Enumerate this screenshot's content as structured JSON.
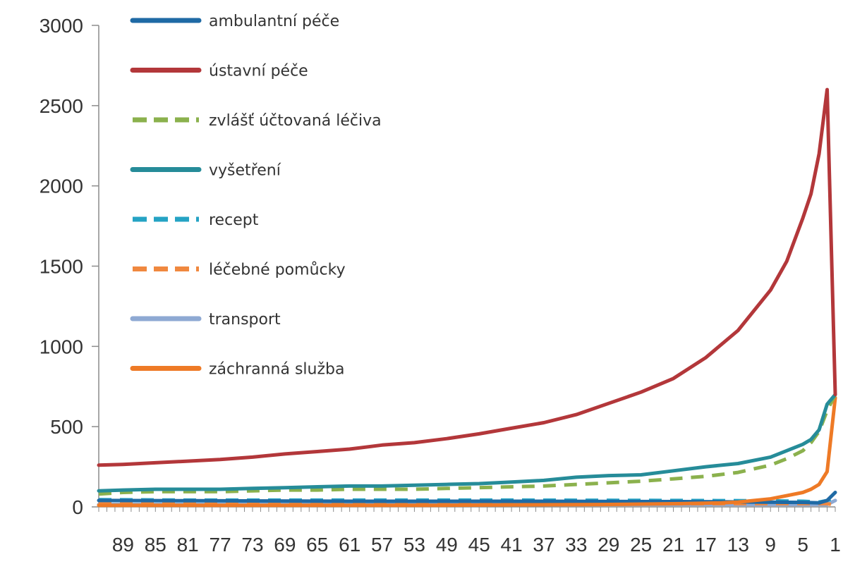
{
  "chart_data": {
    "type": "line",
    "title": "",
    "xlabel": "",
    "ylabel": "",
    "x_range": [
      92,
      1
    ],
    "ylim": [
      0,
      3000
    ],
    "y_ticks": [
      0,
      500,
      1000,
      1500,
      2000,
      2500,
      3000
    ],
    "x_ticks": [
      89,
      85,
      81,
      77,
      73,
      69,
      65,
      61,
      57,
      53,
      49,
      45,
      41,
      37,
      33,
      29,
      25,
      21,
      17,
      13,
      9,
      5,
      1
    ],
    "grid": false,
    "legend_placement": "top-left",
    "series": [
      {
        "name": "ambulantní péče",
        "color": "#1f6aa5",
        "dash": "solid",
        "points": [
          [
            92,
            40
          ],
          [
            80,
            38
          ],
          [
            60,
            35
          ],
          [
            40,
            35
          ],
          [
            20,
            33
          ],
          [
            10,
            30
          ],
          [
            5,
            28
          ],
          [
            3,
            25
          ],
          [
            2,
            40
          ],
          [
            1,
            90
          ]
        ]
      },
      {
        "name": "ústavní péče",
        "color": "#b3373a",
        "dash": "solid",
        "points": [
          [
            92,
            260
          ],
          [
            89,
            265
          ],
          [
            85,
            275
          ],
          [
            81,
            285
          ],
          [
            77,
            295
          ],
          [
            73,
            310
          ],
          [
            69,
            330
          ],
          [
            65,
            345
          ],
          [
            61,
            360
          ],
          [
            57,
            385
          ],
          [
            53,
            400
          ],
          [
            49,
            425
          ],
          [
            45,
            455
          ],
          [
            41,
            490
          ],
          [
            37,
            525
          ],
          [
            33,
            575
          ],
          [
            29,
            645
          ],
          [
            25,
            715
          ],
          [
            21,
            800
          ],
          [
            17,
            930
          ],
          [
            13,
            1100
          ],
          [
            9,
            1350
          ],
          [
            7,
            1530
          ],
          [
            5,
            1800
          ],
          [
            4,
            1950
          ],
          [
            3,
            2200
          ],
          [
            2,
            2600
          ],
          [
            1,
            700
          ]
        ]
      },
      {
        "name": "zvlášť účtovaná léčiva",
        "color": "#8bb14d",
        "dash": "dashed",
        "points": [
          [
            92,
            80
          ],
          [
            89,
            90
          ],
          [
            85,
            95
          ],
          [
            81,
            95
          ],
          [
            77,
            95
          ],
          [
            73,
            100
          ],
          [
            69,
            105
          ],
          [
            65,
            105
          ],
          [
            61,
            110
          ],
          [
            57,
            110
          ],
          [
            53,
            110
          ],
          [
            49,
            115
          ],
          [
            45,
            120
          ],
          [
            41,
            125
          ],
          [
            37,
            130
          ],
          [
            33,
            140
          ],
          [
            29,
            150
          ],
          [
            25,
            160
          ],
          [
            21,
            175
          ],
          [
            17,
            190
          ],
          [
            13,
            215
          ],
          [
            9,
            260
          ],
          [
            7,
            300
          ],
          [
            5,
            350
          ],
          [
            4,
            400
          ],
          [
            3,
            470
          ],
          [
            2,
            600
          ],
          [
            1,
            700
          ]
        ]
      },
      {
        "name": "vyšetření",
        "color": "#268c99",
        "dash": "solid",
        "points": [
          [
            92,
            100
          ],
          [
            89,
            105
          ],
          [
            85,
            110
          ],
          [
            81,
            110
          ],
          [
            77,
            110
          ],
          [
            73,
            115
          ],
          [
            69,
            120
          ],
          [
            65,
            125
          ],
          [
            61,
            130
          ],
          [
            57,
            130
          ],
          [
            53,
            135
          ],
          [
            49,
            140
          ],
          [
            45,
            145
          ],
          [
            41,
            155
          ],
          [
            37,
            165
          ],
          [
            33,
            185
          ],
          [
            29,
            195
          ],
          [
            25,
            200
          ],
          [
            21,
            225
          ],
          [
            17,
            250
          ],
          [
            13,
            270
          ],
          [
            9,
            310
          ],
          [
            7,
            350
          ],
          [
            5,
            390
          ],
          [
            4,
            420
          ],
          [
            3,
            480
          ],
          [
            2,
            640
          ],
          [
            1,
            700
          ]
        ]
      },
      {
        "name": "recept",
        "color": "#25a3c4",
        "dash": "dashed",
        "points": [
          [
            92,
            45
          ],
          [
            80,
            42
          ],
          [
            60,
            42
          ],
          [
            40,
            42
          ],
          [
            20,
            40
          ],
          [
            10,
            38
          ],
          [
            5,
            35
          ],
          [
            3,
            30
          ],
          [
            2,
            40
          ],
          [
            1,
            60
          ]
        ]
      },
      {
        "name": "léčebné pomůcky",
        "color": "#f0883f",
        "dash": "dashed",
        "points": [
          [
            92,
            20
          ],
          [
            60,
            20
          ],
          [
            40,
            20
          ],
          [
            20,
            20
          ],
          [
            10,
            20
          ],
          [
            5,
            20
          ],
          [
            2,
            20
          ],
          [
            1,
            10
          ]
        ]
      },
      {
        "name": "transport",
        "color": "#8ea9d3",
        "dash": "solid",
        "points": [
          [
            92,
            15
          ],
          [
            60,
            15
          ],
          [
            40,
            15
          ],
          [
            20,
            15
          ],
          [
            10,
            15
          ],
          [
            5,
            15
          ],
          [
            2,
            15
          ],
          [
            1,
            40
          ]
        ]
      },
      {
        "name": "záchranná služba",
        "color": "#ee7a26",
        "dash": "solid",
        "points": [
          [
            92,
            10
          ],
          [
            70,
            10
          ],
          [
            50,
            10
          ],
          [
            30,
            15
          ],
          [
            20,
            20
          ],
          [
            15,
            25
          ],
          [
            13,
            30
          ],
          [
            11,
            40
          ],
          [
            9,
            50
          ],
          [
            7,
            70
          ],
          [
            5,
            90
          ],
          [
            4,
            110
          ],
          [
            3,
            140
          ],
          [
            2,
            220
          ],
          [
            1,
            680
          ]
        ]
      }
    ]
  }
}
